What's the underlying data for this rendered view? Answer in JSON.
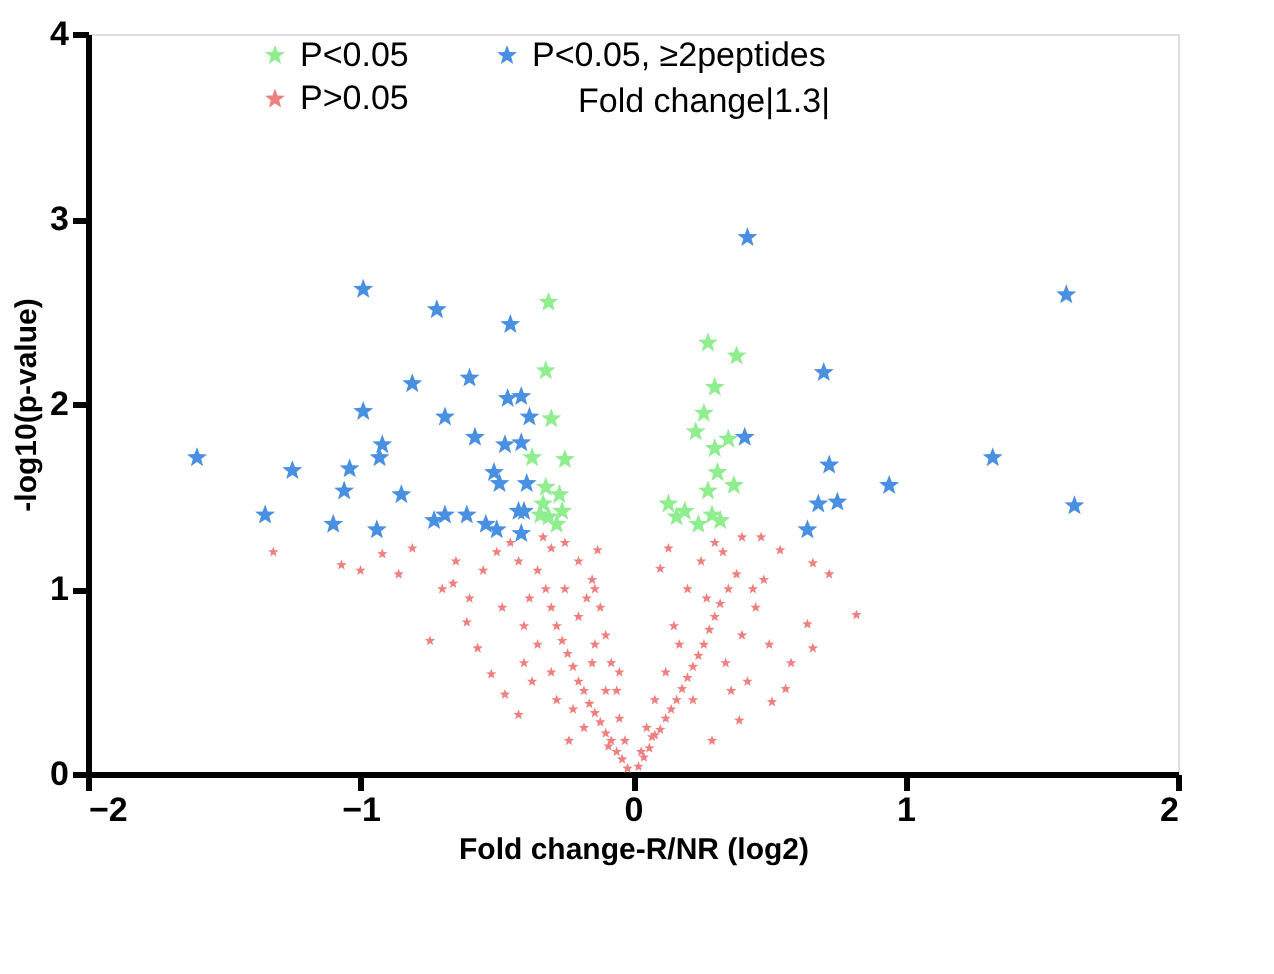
{
  "chart_data": {
    "type": "scatter",
    "xlabel": "Fold change-R/NR (log2)",
    "ylabel": "-log10(p-value)",
    "xlim": [
      -2,
      2
    ],
    "xticks": [
      -2,
      -1,
      0,
      1,
      2
    ],
    "ylim": [
      0,
      4
    ],
    "yticks": [
      0,
      1,
      2,
      3,
      4
    ],
    "grid": false,
    "legend": "top",
    "marker": "star",
    "annotations": [
      "Fold change|1.3|"
    ],
    "series": [
      {
        "name": "P<0.05",
        "color": "#90ee90",
        "x": [
          -0.31,
          -0.32,
          -0.3,
          -0.25,
          -0.37,
          -0.32,
          -0.27,
          -0.33,
          -0.26,
          -0.31,
          -0.34,
          -0.28,
          0.275,
          0.38,
          0.3,
          0.26,
          0.23,
          0.35,
          0.3,
          0.31,
          0.37,
          0.275,
          0.13,
          0.19,
          0.29,
          0.16,
          0.24,
          0.32
        ],
        "values": [
          2.55,
          2.18,
          1.92,
          1.7,
          1.71,
          1.55,
          1.51,
          1.46,
          1.42,
          1.39,
          1.4,
          1.35,
          2.33,
          2.26,
          2.09,
          1.95,
          1.85,
          1.81,
          1.76,
          1.63,
          1.56,
          1.53,
          1.46,
          1.42,
          1.4,
          1.39,
          1.35,
          1.37
        ]
      },
      {
        "name": "P<0.05, ≥2peptides",
        "color": "#4a90e2",
        "x": [
          -0.99,
          -0.72,
          -0.45,
          -0.81,
          -0.6,
          -0.46,
          -0.41,
          -0.99,
          -0.69,
          -0.38,
          -1.6,
          -1.25,
          -1.04,
          -0.92,
          -0.93,
          -0.58,
          -0.47,
          -0.41,
          -1.06,
          -0.85,
          -0.51,
          -0.49,
          -0.39,
          -1.35,
          -1.1,
          -0.94,
          -0.73,
          -0.69,
          -0.61,
          -0.54,
          -0.5,
          -0.42,
          -0.4,
          -0.41,
          0.42,
          1.59,
          0.7,
          0.41,
          0.72,
          0.94,
          1.32,
          1.62,
          0.68,
          0.75,
          0.64
        ],
        "values": [
          2.62,
          2.51,
          2.43,
          2.11,
          2.14,
          2.03,
          2.04,
          1.96,
          1.93,
          1.93,
          1.71,
          1.64,
          1.65,
          1.78,
          1.71,
          1.82,
          1.78,
          1.79,
          1.53,
          1.51,
          1.63,
          1.57,
          1.57,
          1.4,
          1.35,
          1.32,
          1.37,
          1.4,
          1.4,
          1.35,
          1.32,
          1.42,
          1.42,
          1.3,
          2.9,
          2.59,
          2.17,
          1.82,
          1.67,
          1.56,
          1.71,
          1.45,
          1.46,
          1.47,
          1.32
        ]
      },
      {
        "name": "P>0.05",
        "color": "#f08080",
        "x": [
          -1.32,
          -1.07,
          -1.0,
          -0.86,
          -0.92,
          -0.81,
          -0.745,
          -0.7,
          -0.66,
          -0.61,
          -0.57,
          -0.52,
          -0.47,
          -0.42,
          -0.235,
          -0.14,
          -0.13,
          -0.02,
          -0.04,
          -0.06,
          -0.08,
          -0.1,
          -0.12,
          -0.14,
          -0.16,
          -0.18,
          -0.2,
          -0.22,
          -0.24,
          -0.26,
          -0.28,
          -0.3,
          -0.32,
          -0.35,
          -0.3,
          -0.25,
          -0.2,
          -0.15,
          -0.12,
          -0.1,
          -0.08,
          -0.06,
          -0.05,
          -0.03,
          -0.15,
          -0.2,
          -0.25,
          -0.38,
          -0.4,
          -0.42,
          -0.45,
          -0.5,
          -0.55,
          -0.48,
          -0.35,
          -0.3,
          -0.28,
          -0.4,
          -0.18,
          -0.22,
          -0.1,
          -0.14,
          -0.6,
          -0.65,
          -0.33,
          -0.37,
          -0.05,
          -0.09,
          -0.17,
          0.82,
          0.72,
          0.66,
          0.64,
          0.66,
          0.56,
          0.51,
          0.39,
          0.29,
          0.54,
          0.47,
          0.4,
          0.1,
          0.02,
          0.04,
          0.06,
          0.08,
          0.1,
          0.12,
          0.14,
          0.16,
          0.18,
          0.2,
          0.22,
          0.24,
          0.26,
          0.28,
          0.3,
          0.32,
          0.35,
          0.38,
          0.12,
          0.15,
          0.2,
          0.25,
          0.3,
          0.34,
          0.4,
          0.45,
          0.48,
          0.36,
          0.42,
          0.05,
          0.08,
          0.17,
          0.22,
          0.27,
          0.33,
          0.44,
          0.5,
          0.58,
          0.03,
          0.07,
          0.13
        ],
        "values": [
          1.2,
          1.13,
          1.1,
          1.08,
          1.19,
          1.22,
          0.72,
          1.0,
          1.03,
          0.82,
          0.68,
          0.54,
          0.43,
          0.32,
          0.18,
          1.0,
          1.21,
          0.03,
          0.08,
          0.12,
          0.18,
          0.22,
          0.28,
          0.33,
          0.38,
          0.45,
          0.5,
          0.58,
          0.65,
          0.72,
          0.8,
          0.9,
          1.0,
          1.1,
          1.22,
          1.25,
          1.15,
          1.05,
          0.9,
          0.75,
          0.6,
          0.45,
          0.3,
          0.18,
          0.6,
          0.85,
          1.0,
          0.95,
          0.8,
          1.15,
          1.25,
          1.2,
          1.1,
          0.9,
          0.7,
          0.55,
          0.4,
          0.6,
          0.25,
          0.35,
          0.45,
          0.7,
          0.95,
          1.15,
          1.28,
          0.5,
          0.55,
          0.15,
          0.95,
          0.86,
          1.08,
          1.14,
          0.81,
          0.68,
          0.46,
          0.39,
          0.29,
          0.18,
          1.21,
          1.28,
          1.28,
          1.11,
          0.04,
          0.09,
          0.14,
          0.21,
          0.24,
          0.3,
          0.35,
          0.4,
          0.46,
          0.52,
          0.58,
          0.64,
          0.7,
          0.78,
          0.85,
          0.92,
          1.0,
          1.08,
          0.55,
          0.8,
          1.0,
          1.15,
          1.25,
          0.6,
          0.75,
          0.9,
          1.05,
          0.45,
          0.5,
          0.25,
          0.4,
          0.7,
          0.4,
          0.95,
          1.2,
          1.0,
          0.7,
          0.6,
          0.12,
          0.2,
          1.22
        ]
      }
    ]
  }
}
